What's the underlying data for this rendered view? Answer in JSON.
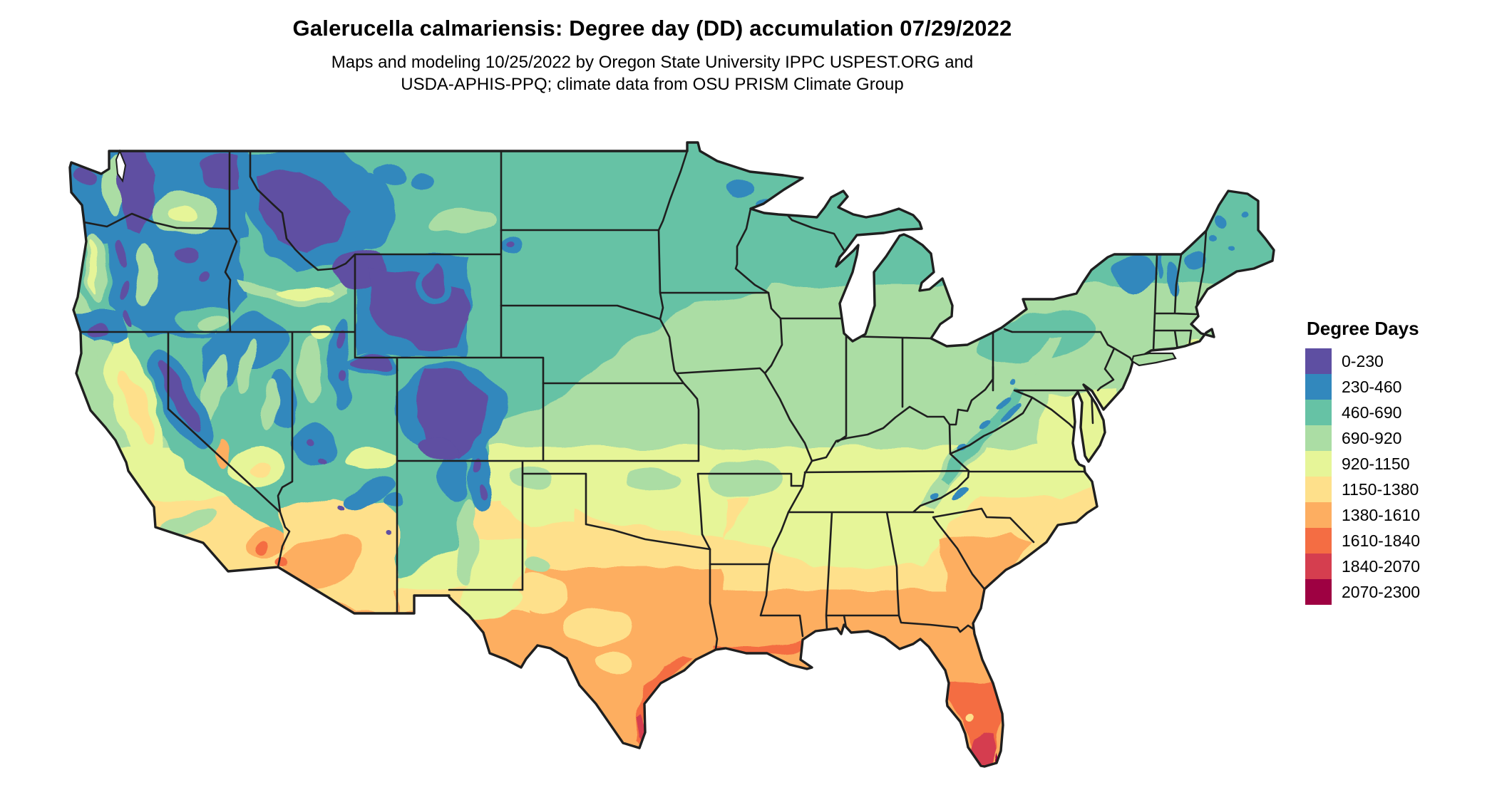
{
  "page": {
    "background": "#ffffff",
    "state_border_color": "#1f1f1f"
  },
  "header": {
    "title": "Galerucella calmariensis: Degree day (DD) accumulation 07/29/2022",
    "subtitle_line1": "Maps and modeling 10/25/2022 by Oregon State University IPPC USPEST.ORG and",
    "subtitle_line2": "USDA-APHIS-PPQ; climate data from OSU PRISM Climate Group"
  },
  "legend": {
    "title": "Degree Days",
    "items": [
      {
        "label": "0-230",
        "color": "#5e4fa2"
      },
      {
        "label": "230-460",
        "color": "#3288bd"
      },
      {
        "label": "460-690",
        "color": "#66c2a5"
      },
      {
        "label": "690-920",
        "color": "#abdda4"
      },
      {
        "label": "920-1150",
        "color": "#e6f598"
      },
      {
        "label": "1150-1380",
        "color": "#fee08b"
      },
      {
        "label": "1380-1610",
        "color": "#fdae61"
      },
      {
        "label": "1610-1840",
        "color": "#f46d43"
      },
      {
        "label": "1840-2070",
        "color": "#d53e4f"
      },
      {
        "label": "2070-2300",
        "color": "#9e0142"
      }
    ]
  },
  "chart_data": {
    "type": "choropleth-map",
    "unit": "degree days (DD)",
    "date_shown": "07/29/2022",
    "geography": "United States (lower 48 states) with state boundaries; lakes and surrounding areas shown white",
    "legend_title": "Degree Days",
    "bins": [
      {
        "range": "0-230",
        "color": "#5e4fa2",
        "where": "high Cascades, Idaho/Montana Rockies, Wyoming ranges, Colorado Rockies, Sierra Nevada crest"
      },
      {
        "range": "230-460",
        "color": "#3288bd",
        "where": "mountain West: Washington, Oregon, Idaho, western Montana, Wyoming, Utah, Colorado mountains"
      },
      {
        "range": "460-690",
        "color": "#66c2a5",
        "where": "northern plains, Great Lakes, northern New England, interior West basins"
      },
      {
        "range": "690-920",
        "color": "#abdda4",
        "where": "central Midwest, Iowa, Nebraska, Ohio valley, Appalachians, southern New England"
      },
      {
        "range": "920-1150",
        "color": "#e6f598",
        "where": "Kansas, Missouri, Kentucky, Tennessee, Oklahoma, Virginia, California Central Valley"
      },
      {
        "range": "1150-1380",
        "color": "#fee08b",
        "where": "north Texas, Arkansas, mid-South, central Georgia and Carolinas, southern Arizona/New Mexico"
      },
      {
        "range": "1380-1610",
        "color": "#fdae61",
        "where": "central/south Texas, Gulf coastal plain, south Georgia, north Florida, low deserts"
      },
      {
        "range": "1610-1840",
        "color": "#f46d43",
        "where": "Texas Gulf coast strip, Louisiana shore, central-south Florida"
      },
      {
        "range": "1840-2070",
        "color": "#d53e4f",
        "where": "lower Rio Grande tip of Texas, southeast Florida"
      },
      {
        "range": "2070-2300",
        "color": "#9e0142",
        "where": "southernmost tip of Florida"
      }
    ]
  }
}
